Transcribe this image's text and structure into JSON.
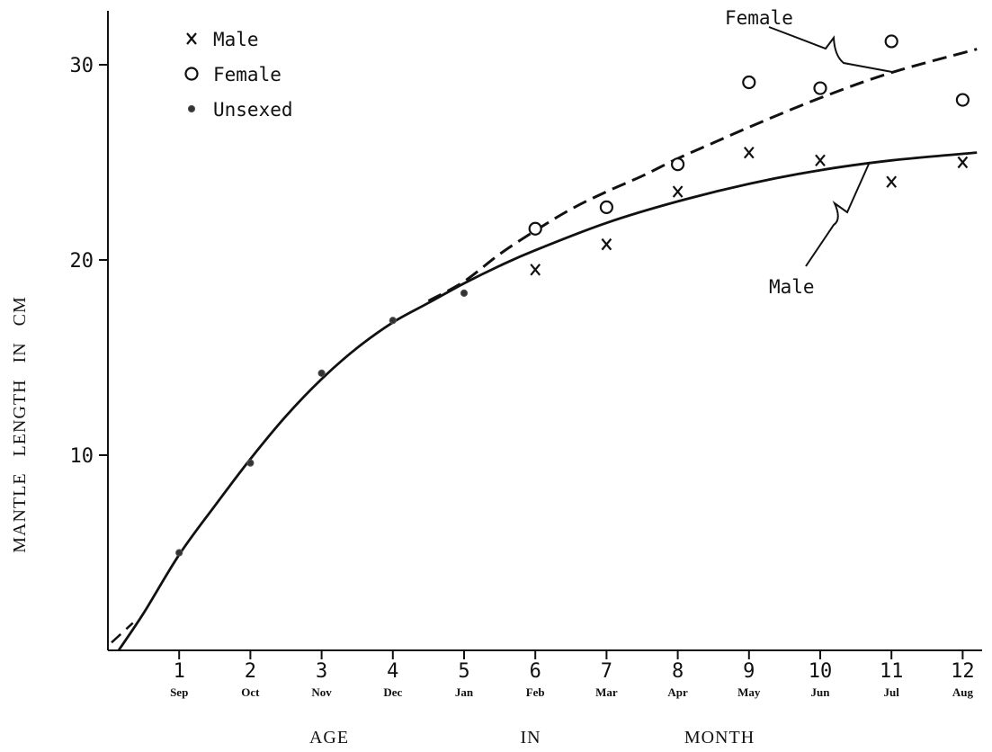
{
  "chart_data": {
    "type": "scatter",
    "title": "",
    "xlabel": {
      "parts": [
        "AGE",
        "IN",
        "MONTH"
      ]
    },
    "ylabel": "MANTLE   LENGTH   IN   CM",
    "xlim": [
      0,
      12.4
    ],
    "ylim": [
      0,
      32
    ],
    "x_ticks": [
      1,
      2,
      3,
      4,
      5,
      6,
      7,
      8,
      9,
      10,
      11,
      12
    ],
    "x_tick_labels": [
      "1",
      "2",
      "3",
      "4",
      "5",
      "6",
      "7",
      "8",
      "9",
      "10",
      "11",
      "12"
    ],
    "x_month_labels": [
      "Sep",
      "Oct",
      "Nov",
      "Dec",
      "Jan",
      "Feb",
      "Mar",
      "Apr",
      "May",
      "Jun",
      "Jul",
      "Aug"
    ],
    "y_ticks": [
      10,
      20,
      30
    ],
    "y_tick_labels": [
      "10",
      "20",
      "30"
    ],
    "grid": false,
    "legend_position": "top-left",
    "legend": [
      {
        "marker": "x",
        "label": "Male"
      },
      {
        "marker": "open-circle",
        "label": "Female"
      },
      {
        "marker": "dot",
        "label": "Unsexed"
      }
    ],
    "series": [
      {
        "name": "Male",
        "marker": "x",
        "points": [
          [
            6,
            19.5
          ],
          [
            7,
            20.8
          ],
          [
            8,
            23.5
          ],
          [
            9,
            25.5
          ],
          [
            10,
            25.1
          ],
          [
            11,
            24.0
          ],
          [
            12,
            25.0
          ]
        ]
      },
      {
        "name": "Female",
        "marker": "open-circle",
        "points": [
          [
            6,
            21.6
          ],
          [
            7,
            22.7
          ],
          [
            8,
            24.9
          ],
          [
            9,
            29.1
          ],
          [
            10,
            28.8
          ],
          [
            11,
            31.2
          ],
          [
            12,
            28.2
          ]
        ]
      },
      {
        "name": "Unsexed",
        "marker": "dot",
        "points": [
          [
            1,
            5.0
          ],
          [
            2,
            9.6
          ],
          [
            3,
            14.2
          ],
          [
            4,
            16.9
          ],
          [
            5,
            18.3
          ]
        ]
      }
    ],
    "curves": [
      {
        "name": "Male",
        "style": "solid",
        "points": [
          [
            0.15,
            0
          ],
          [
            0.5,
            1.9
          ],
          [
            1,
            4.9
          ],
          [
            1.5,
            7.4
          ],
          [
            2,
            9.8
          ],
          [
            2.5,
            12.0
          ],
          [
            3,
            13.9
          ],
          [
            3.5,
            15.5
          ],
          [
            4,
            16.8
          ],
          [
            4.5,
            17.8
          ],
          [
            5,
            18.8
          ],
          [
            5.5,
            19.7
          ],
          [
            6,
            20.5
          ],
          [
            7,
            21.9
          ],
          [
            8,
            23.0
          ],
          [
            9,
            23.9
          ],
          [
            10,
            24.6
          ],
          [
            11,
            25.1
          ],
          [
            12.2,
            25.5
          ]
        ]
      },
      {
        "name": "Female",
        "style": "dashed",
        "points": [
          [
            0.05,
            0.4
          ],
          [
            0.35,
            1.4
          ],
          [
            4.5,
            17.9
          ],
          [
            5,
            18.9
          ],
          [
            5.5,
            20.3
          ],
          [
            6,
            21.5
          ],
          [
            6.5,
            22.6
          ],
          [
            7,
            23.5
          ],
          [
            7.5,
            24.3
          ],
          [
            8,
            25.2
          ],
          [
            8.5,
            26.0
          ],
          [
            9,
            26.8
          ],
          [
            10,
            28.3
          ],
          [
            11,
            29.6
          ],
          [
            12.2,
            30.8
          ]
        ]
      }
    ],
    "annotations": [
      {
        "text": "Female",
        "series": "Female"
      },
      {
        "text": "Male",
        "series": "Male"
      }
    ]
  }
}
